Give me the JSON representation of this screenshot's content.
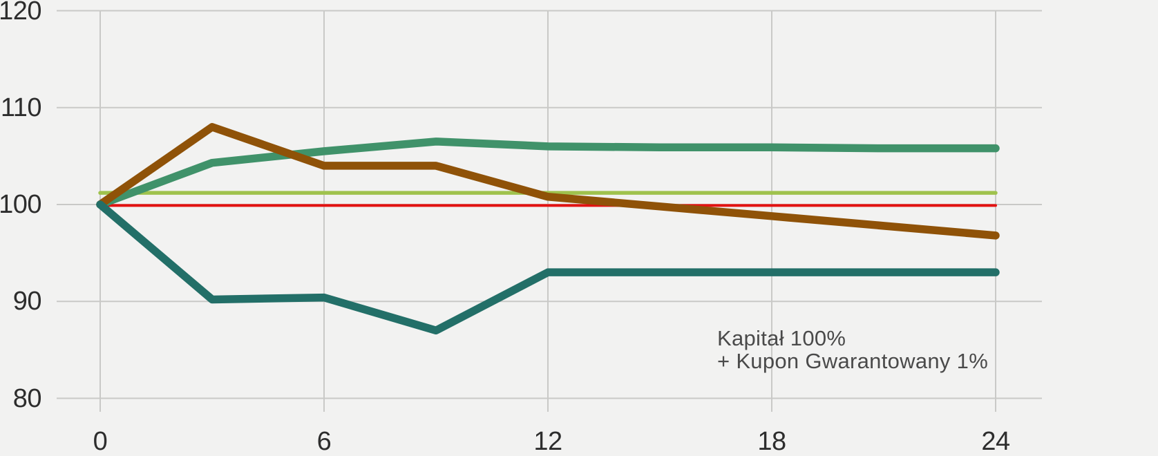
{
  "chart_data": {
    "type": "line",
    "title": "",
    "xlabel": "",
    "ylabel": "",
    "xlim": [
      0,
      24
    ],
    "ylim": [
      80,
      120
    ],
    "grid": true,
    "legend": "none",
    "x": [
      0,
      3,
      6,
      9,
      12,
      15,
      18,
      21,
      24
    ],
    "xtick_labels": [
      "0",
      "6",
      "12",
      "18",
      "24"
    ],
    "ytick_labels": [
      "120",
      "110",
      "100",
      "90",
      "80"
    ],
    "series": [
      {
        "name": "scenario-line-green",
        "color": "#40926a",
        "stroke_width": 11.5,
        "values": [
          100,
          104.3,
          105.5,
          106.5,
          106,
          105.9,
          105.9,
          105.8,
          105.8
        ]
      },
      {
        "name": "scenario-line-brown",
        "color": "#8f5208",
        "stroke_width": 11.5,
        "values": [
          100,
          108,
          104,
          104,
          100.8,
          99.8,
          98.8,
          97.8,
          96.8
        ]
      },
      {
        "name": "scenario-line-teal",
        "color": "#236f68",
        "stroke_width": 11.5,
        "values": [
          100,
          90.2,
          90.4,
          87,
          93,
          93,
          93,
          93,
          93
        ]
      }
    ],
    "reference_lines": [
      {
        "name": "guaranteed-capital-plus-coupon-line",
        "level": 101.2,
        "color": "#9fc24d",
        "stroke_width": 5.5
      },
      {
        "name": "capital-level-line",
        "level": 99.9,
        "color": "#e31211",
        "stroke_width": 4
      }
    ],
    "annotation": {
      "line1": "Kapitał 100%",
      "line2": "+ Kupon Gwarantowany 1%"
    }
  },
  "colors": {
    "background": "#f2f2f1",
    "gridline": "#c9c9c7",
    "tick_text": "#2d2d2d",
    "annotation_text": "#4a4a4a"
  }
}
